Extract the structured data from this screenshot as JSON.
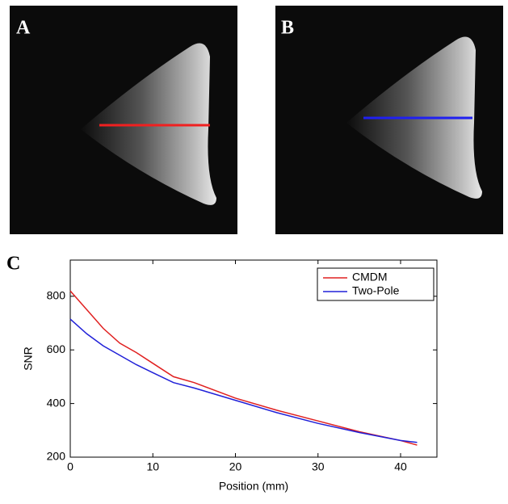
{
  "panel_labels": [
    "A",
    "B",
    "C"
  ],
  "chart_data": {
    "type": "line",
    "x_label": "Position (mm)",
    "y_label": "SNR",
    "x": [
      0,
      2,
      4,
      6,
      8,
      10,
      12.5,
      15,
      20,
      25,
      30,
      35,
      40,
      42
    ],
    "series": [
      {
        "name": "CMDM",
        "color": "#e02020",
        "values": [
          820,
          750,
          680,
          625,
          590,
          550,
          500,
          478,
          420,
          375,
          335,
          295,
          262,
          245
        ]
      },
      {
        "name": "Two-Pole",
        "color": "#2020d8",
        "values": [
          715,
          660,
          615,
          580,
          545,
          515,
          478,
          458,
          412,
          366,
          326,
          292,
          262,
          255
        ]
      }
    ],
    "xlim": [
      0,
      44.4
    ],
    "xticks": [
      0,
      10,
      20,
      30,
      40
    ],
    "ylim": [
      200,
      935
    ],
    "yticks": [
      200,
      400,
      600,
      800
    ],
    "legend": "top-right"
  }
}
